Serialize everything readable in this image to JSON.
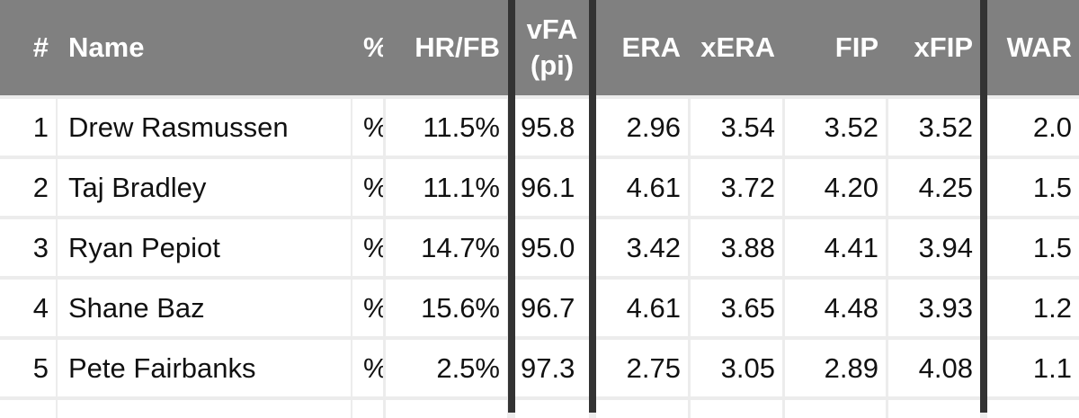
{
  "table": {
    "columns": [
      "#",
      "Name",
      "%",
      "HR/FB",
      "vFA (pi)",
      "ERA",
      "xERA",
      "FIP",
      "xFIP",
      "WAR"
    ],
    "rows": [
      [
        "1",
        "Drew Rasmussen",
        "%",
        "11.5%",
        "95.8",
        "2.96",
        "3.54",
        "3.52",
        "3.52",
        "2.0"
      ],
      [
        "2",
        "Taj Bradley",
        "%",
        "11.1%",
        "96.1",
        "4.61",
        "3.72",
        "4.20",
        "4.25",
        "1.5"
      ],
      [
        "3",
        "Ryan Pepiot",
        "%",
        "14.7%",
        "95.0",
        "3.42",
        "3.88",
        "4.41",
        "3.94",
        "1.5"
      ],
      [
        "4",
        "Shane Baz",
        "%",
        "15.6%",
        "96.7",
        "4.61",
        "3.65",
        "4.48",
        "3.93",
        "1.2"
      ],
      [
        "5",
        "Pete Fairbanks",
        "%",
        "2.5%",
        "97.3",
        "2.75",
        "3.05",
        "2.89",
        "4.08",
        "1.1"
      ]
    ]
  },
  "colors": {
    "header_bg": "#808080",
    "header_text": "#ffffff",
    "divider": "#333333",
    "grid": "#ececec"
  }
}
